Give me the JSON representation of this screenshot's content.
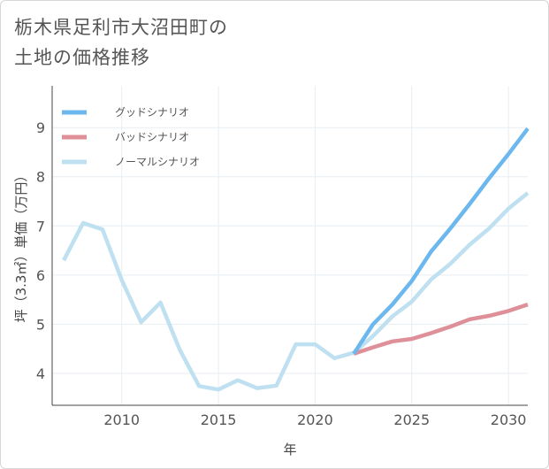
{
  "title": {
    "line1": "栃木県足利市大沼田町の",
    "line2": "土地の価格推移"
  },
  "chart_data": {
    "type": "line",
    "xlabel": "年",
    "ylabel": "坪（3.3㎡）単価（万円）",
    "xlim": [
      2006.4,
      2031.0
    ],
    "ylim": [
      3.35,
      9.85
    ],
    "xticks": [
      2010,
      2015,
      2020,
      2025,
      2030
    ],
    "yticks": [
      4,
      5,
      6,
      7,
      8,
      9
    ],
    "grid": true,
    "legend_position": "top-left",
    "series": [
      {
        "name": "グッドシナリオ",
        "color": "#6cb8ee",
        "x": [
          2022,
          2023,
          2024,
          2025,
          2026,
          2027,
          2028,
          2029,
          2030,
          2031
        ],
        "y": [
          4.4,
          5.0,
          5.4,
          5.88,
          6.48,
          6.95,
          7.45,
          7.97,
          8.46,
          8.98
        ]
      },
      {
        "name": "バッドシナリオ",
        "color": "#de8f97",
        "x": [
          2022,
          2023,
          2024,
          2025,
          2026,
          2027,
          2028,
          2029,
          2030,
          2031
        ],
        "y": [
          4.4,
          4.53,
          4.65,
          4.7,
          4.82,
          4.95,
          5.1,
          5.17,
          5.27,
          5.4
        ]
      },
      {
        "name": "ノーマルシナリオ",
        "color": "#bfe0f0",
        "x": [
          2007,
          2008,
          2009,
          2010,
          2011,
          2012,
          2013,
          2014,
          2015,
          2016,
          2017,
          2018,
          2019,
          2020,
          2021,
          2022,
          2023,
          2024,
          2025,
          2026,
          2027,
          2028,
          2029,
          2030,
          2031
        ],
        "y": [
          6.3,
          7.06,
          6.93,
          5.9,
          5.04,
          5.44,
          4.48,
          3.74,
          3.67,
          3.86,
          3.7,
          3.75,
          4.59,
          4.59,
          4.31,
          4.42,
          4.76,
          5.16,
          5.46,
          5.91,
          6.23,
          6.62,
          6.95,
          7.35,
          7.67
        ]
      }
    ]
  }
}
